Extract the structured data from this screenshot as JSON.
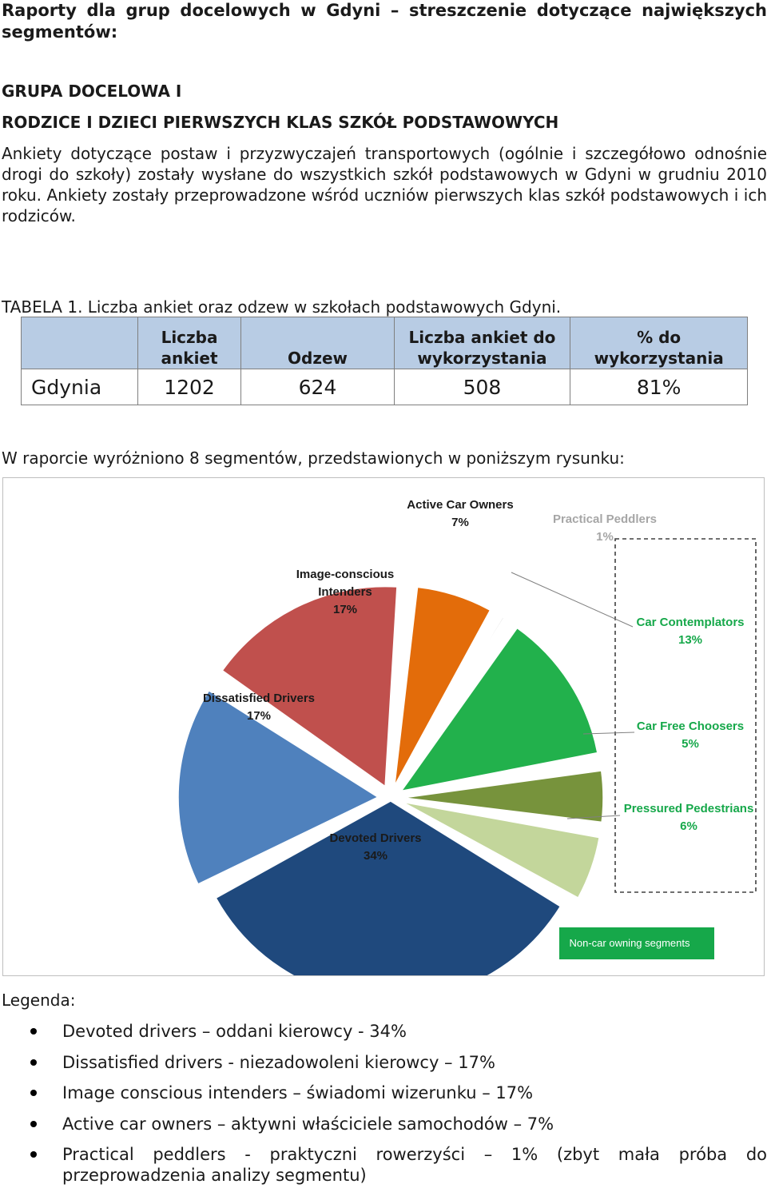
{
  "header": {
    "title": "Raporty dla grup docelowych w Gdyni – streszczenie dotyczące największych segmentów:",
    "group_label": "GRUPA DOCELOWA I",
    "group_name": "RODZICE I DZIECI PIERWSZYCH KLAS SZKÓŁ PODSTAWOWYCH"
  },
  "intro": "Ankiety dotyczące postaw i przyzwyczajeń transportowych (ogólnie i szczegółowo odnośnie drogi do szkoły) zostały wysłane do wszystkich szkół podstawowych w Gdyni w grudniu 2010 roku. Ankiety zostały przeprowadzone wśród uczniów pierwszych klas szkół podstawowych i ich rodziców.",
  "table": {
    "caption": "TABELA 1. Liczba ankiet oraz odzew w szkołach podstawowych Gdyni.",
    "headers": [
      "",
      "Liczba ankiet",
      "Odzew",
      "Liczba ankiet do wykorzystania",
      "% do wykorzystania"
    ],
    "rows": [
      [
        "Gdynia",
        "1202",
        "624",
        "508",
        "81%"
      ]
    ]
  },
  "segments_text": "W raporcie wyróżniono 8 segmentów, przedstawionych w poniższym rysunku:",
  "chart_data": {
    "type": "pie",
    "slices": [
      {
        "label": "Active Car Owners",
        "value": 7,
        "text": "7%",
        "color": "#e36c0a"
      },
      {
        "label": "Practical Peddlers",
        "value": 1,
        "text": "1%",
        "color": "#c4c4c4"
      },
      {
        "label": "Car Contemplators",
        "value": 13,
        "text": "13%",
        "color": "#22b14c"
      },
      {
        "label": "Car Free Choosers",
        "value": 5,
        "text": "5%",
        "color": "#77933c"
      },
      {
        "label": "Pressured Pedestrians",
        "value": 6,
        "text": "6%",
        "color": "#c3d69b"
      },
      {
        "label": "Devoted Drivers",
        "value": 34,
        "text": "34%",
        "color": "#1f497d"
      },
      {
        "label": "Dissatisfied Drivers",
        "value": 17,
        "text": "17%",
        "color": "#4f81bd"
      },
      {
        "label": "Image-conscious Intenders",
        "value": 17,
        "text": "17%",
        "color": "#c0504d"
      }
    ],
    "annotation": "Non-car owning segments",
    "annotation_color": "#16a84a"
  },
  "legend": {
    "title": "Legenda:",
    "items": [
      "Devoted drivers – oddani kierowcy - 34%",
      "Dissatisfied drivers - niezadowoleni kierowcy – 17%",
      "Image conscious intenders – świadomi wizerunku – 17%",
      "Active car owners – aktywni właściciele samochodów – 7%",
      "Practical peddlers - praktyczni rowerzyści – 1% (zbyt mała próba do przeprowadzenia analizy segmentu)"
    ]
  }
}
